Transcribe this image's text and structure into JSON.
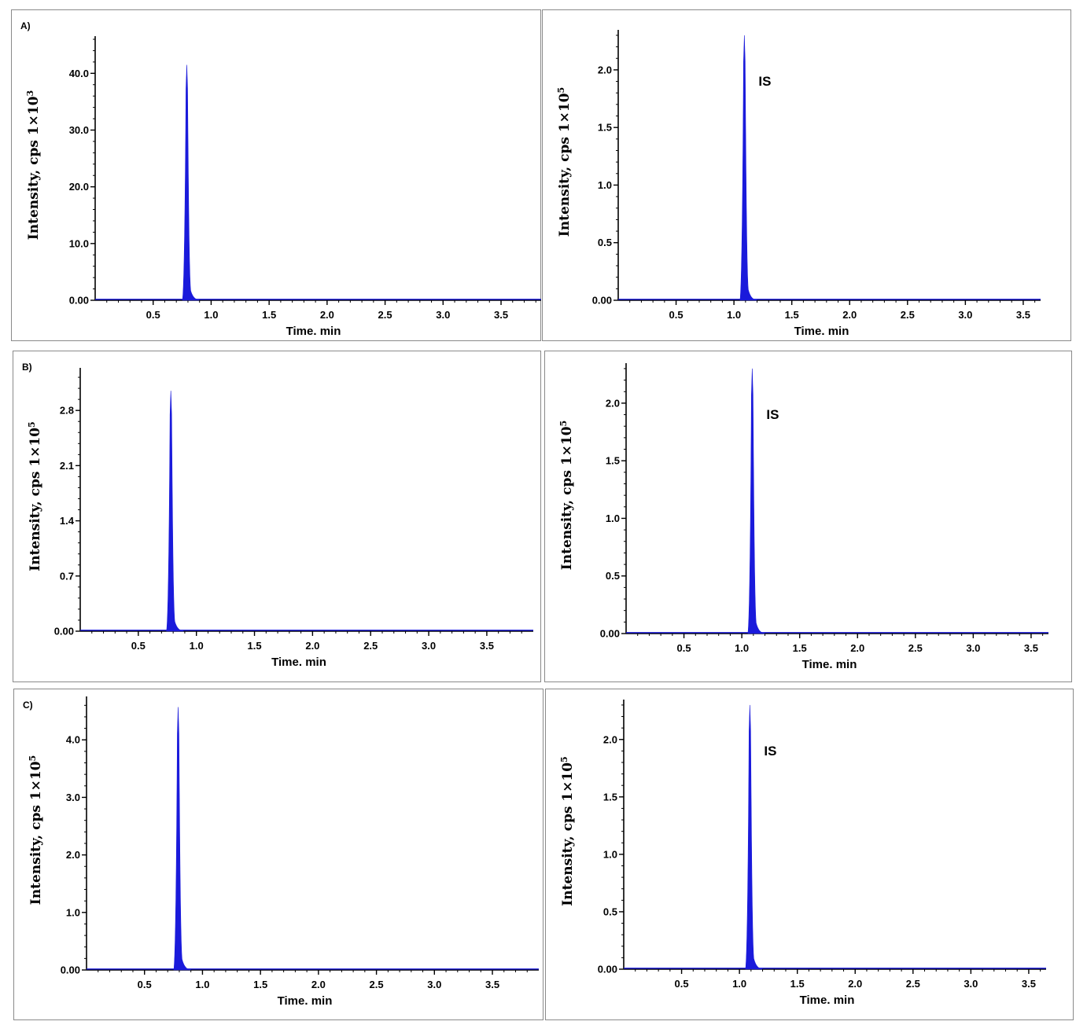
{
  "chart_data": [
    {
      "type": "line",
      "panel_label": "A)",
      "xlabel": "Time. min",
      "ylabel": "Intensity, cps 1×10",
      "ylabel_exp": "3",
      "xlim": [
        0.0,
        3.9
      ],
      "ylim": [
        0,
        46
      ],
      "xticks": [
        "0.5",
        "1.0",
        "1.5",
        "2.0",
        "2.5",
        "3.0",
        "3.5"
      ],
      "yticks": [
        {
          "value": 0,
          "label": "0.00"
        },
        {
          "value": 10,
          "label": "10.0"
        },
        {
          "value": 20,
          "label": "20.0"
        },
        {
          "value": 30,
          "label": "30.0"
        },
        {
          "value": 40,
          "label": "40.0"
        }
      ],
      "peaks": [
        {
          "x": 0.79,
          "y": 41.5
        }
      ],
      "annotation": "",
      "color": "#1a1adb"
    },
    {
      "type": "line",
      "panel_label": "",
      "xlabel": "Time. min",
      "ylabel": "Intensity, cps 1×10",
      "ylabel_exp": "5",
      "xlim": [
        0.0,
        3.65
      ],
      "ylim": [
        0,
        2.32
      ],
      "xticks": [
        "0.5",
        "1.0",
        "1.5",
        "2.0",
        "2.5",
        "3.0",
        "3.5"
      ],
      "yticks": [
        {
          "value": 0,
          "label": "0.00"
        },
        {
          "value": 0.5,
          "label": "0.5"
        },
        {
          "value": 1.0,
          "label": "1.0"
        },
        {
          "value": 1.5,
          "label": "1.5"
        },
        {
          "value": 2.0,
          "label": "2.0"
        }
      ],
      "peaks": [
        {
          "x": 1.09,
          "y": 2.3
        }
      ],
      "annotation": "IS",
      "color": "#1a1adb"
    },
    {
      "type": "line",
      "panel_label": "B)",
      "xlabel": "Time. min",
      "ylabel": "Intensity, cps 1×10",
      "ylabel_exp": "5",
      "xlim": [
        0.0,
        3.9
      ],
      "ylim": [
        0,
        3.3
      ],
      "xticks": [
        "0.5",
        "1.0",
        "1.5",
        "2.0",
        "2.5",
        "3.0",
        "3.5"
      ],
      "yticks": [
        {
          "value": 0,
          "label": "0.00"
        },
        {
          "value": 0.7,
          "label": "0.7"
        },
        {
          "value": 1.4,
          "label": "1.4"
        },
        {
          "value": 2.1,
          "label": "2.1"
        },
        {
          "value": 2.8,
          "label": "2.8"
        }
      ],
      "peaks": [
        {
          "x": 0.78,
          "y": 3.05
        }
      ],
      "annotation": "",
      "color": "#1a1adb"
    },
    {
      "type": "line",
      "panel_label": "",
      "xlabel": "Time. min",
      "ylabel": "Intensity, cps 1×10",
      "ylabel_exp": "5",
      "xlim": [
        0.0,
        3.65
      ],
      "ylim": [
        0,
        2.32
      ],
      "xticks": [
        "0.5",
        "1.0",
        "1.5",
        "2.0",
        "2.5",
        "3.0",
        "3.5"
      ],
      "yticks": [
        {
          "value": 0,
          "label": "0.00"
        },
        {
          "value": 0.5,
          "label": "0.5"
        },
        {
          "value": 1.0,
          "label": "1.0"
        },
        {
          "value": 1.5,
          "label": "1.5"
        },
        {
          "value": 2.0,
          "label": "2.0"
        }
      ],
      "peaks": [
        {
          "x": 1.09,
          "y": 2.3
        }
      ],
      "annotation": "IS",
      "color": "#1a1adb"
    },
    {
      "type": "line",
      "panel_label": "C)",
      "xlabel": "Time. min",
      "ylabel": "Intensity, cps 1×10",
      "ylabel_exp": "5",
      "xlim": [
        0.0,
        3.9
      ],
      "ylim": [
        0,
        4.7
      ],
      "xticks": [
        "0.5",
        "1.0",
        "1.5",
        "2.0",
        "2.5",
        "3.0",
        "3.5"
      ],
      "yticks": [
        {
          "value": 0,
          "label": "0.00"
        },
        {
          "value": 1.0,
          "label": "1.0"
        },
        {
          "value": 2.0,
          "label": "2.0"
        },
        {
          "value": 3.0,
          "label": "3.0"
        },
        {
          "value": 4.0,
          "label": "4.0"
        }
      ],
      "peaks": [
        {
          "x": 0.79,
          "y": 4.57
        }
      ],
      "annotation": "",
      "color": "#1a1adb"
    },
    {
      "type": "line",
      "panel_label": "",
      "xlabel": "Time. min",
      "ylabel": "Intensity, cps 1×10",
      "ylabel_exp": "5",
      "xlim": [
        0.0,
        3.65
      ],
      "ylim": [
        0,
        2.32
      ],
      "xticks": [
        "0.5",
        "1.0",
        "1.5",
        "2.0",
        "2.5",
        "3.0",
        "3.5"
      ],
      "yticks": [
        {
          "value": 0,
          "label": "0.00"
        },
        {
          "value": 0.5,
          "label": "0.5"
        },
        {
          "value": 1.0,
          "label": "1.0"
        },
        {
          "value": 1.5,
          "label": "1.5"
        },
        {
          "value": 2.0,
          "label": "2.0"
        }
      ],
      "peaks": [
        {
          "x": 1.09,
          "y": 2.3
        }
      ],
      "annotation": "IS",
      "color": "#1a1adb"
    }
  ]
}
